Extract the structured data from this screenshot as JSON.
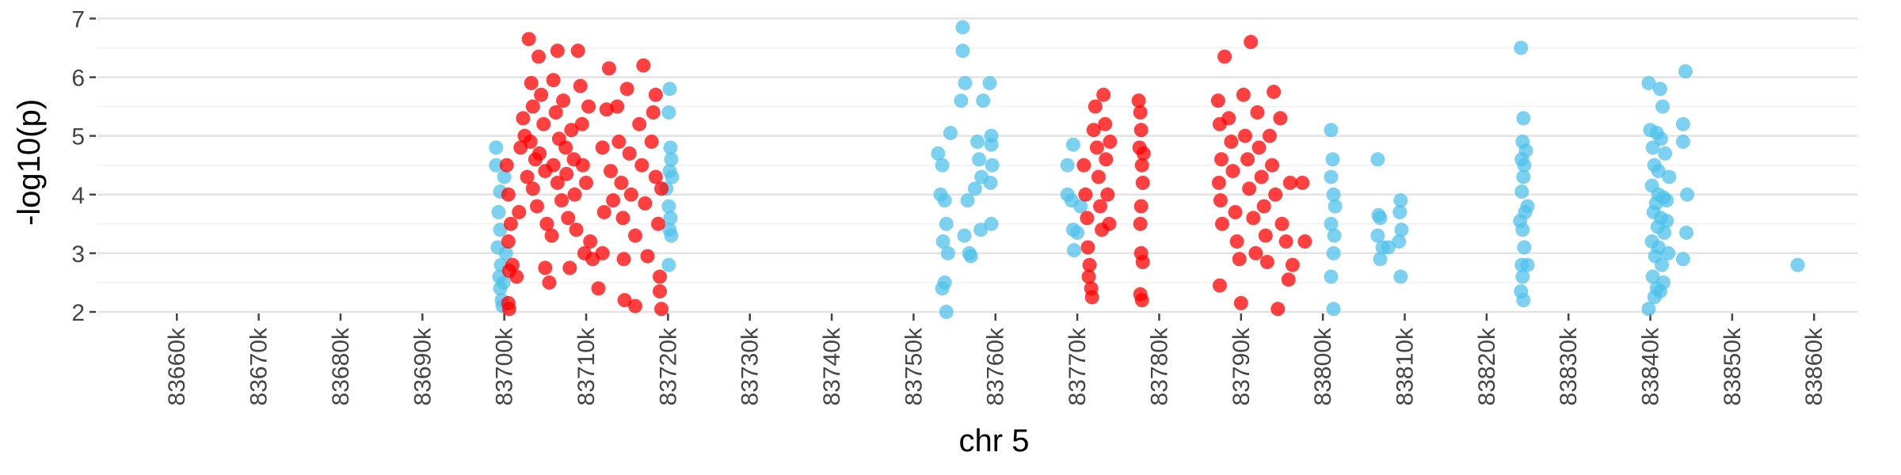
{
  "chart_data": {
    "type": "scatter",
    "x_label": "chr 5",
    "y_label": "-log10(p)",
    "xlim": [
      83650.3,
      83865.3
    ],
    "ylim": [
      2,
      7.1
    ],
    "xticks": [
      {
        "value": 83660,
        "label": "83660k"
      },
      {
        "value": 83670,
        "label": "83670k"
      },
      {
        "value": 83680,
        "label": "83680k"
      },
      {
        "value": 83690,
        "label": "83690k"
      },
      {
        "value": 83700,
        "label": "83700k"
      },
      {
        "value": 83710,
        "label": "83710k"
      },
      {
        "value": 83720,
        "label": "83720k"
      },
      {
        "value": 83730,
        "label": "83730k"
      },
      {
        "value": 83740,
        "label": "83740k"
      },
      {
        "value": 83750,
        "label": "83750k"
      },
      {
        "value": 83760,
        "label": "83760k"
      },
      {
        "value": 83770,
        "label": "83770k"
      },
      {
        "value": 83780,
        "label": "83780k"
      },
      {
        "value": 83790,
        "label": "83790k"
      },
      {
        "value": 83800,
        "label": "83800k"
      },
      {
        "value": 83810,
        "label": "83810k"
      },
      {
        "value": 83820,
        "label": "83820k"
      },
      {
        "value": 83830,
        "label": "83830k"
      },
      {
        "value": 83840,
        "label": "83840k"
      },
      {
        "value": 83850,
        "label": "83850k"
      },
      {
        "value": 83860,
        "label": "83860k"
      }
    ],
    "yticks": [
      2,
      3,
      4,
      5,
      6,
      7
    ],
    "minor_yticks": [
      2.5,
      3.5,
      4.5,
      5.5,
      6.5
    ],
    "grid": true,
    "series": [
      {
        "color": "#4fc1e9",
        "x": [
          83699,
          83699,
          83699.5,
          83699.3,
          83699.5,
          83699.2,
          83699.6,
          83699.4,
          83699.5,
          83699.7,
          83699.8,
          83700,
          83700.2,
          83699.9,
          83720.2,
          83720.1,
          83720.3,
          83720.4,
          83720.2,
          83720.5,
          83720.1,
          83720.3,
          83720.2,
          83720.4,
          83720.1,
          83719.8,
          83753,
          83753.5,
          83753.3,
          83753.8,
          83754,
          83753.6,
          83754.2,
          83753.8,
          83753.5,
          83754,
          83754.5,
          83756,
          83756,
          83756.3,
          83755.8,
          83756.6,
          83756.2,
          83756.8,
          83757,
          83757.5,
          83757.8,
          83758,
          83758.3,
          83758.2,
          83759.3,
          83759.5,
          83759.5,
          83759.6,
          83759.4,
          83759.5,
          83758.5,
          83768.8,
          83768.8,
          83769.5,
          83769.3,
          83769.5,
          83769.6,
          83770,
          83770.4,
          83801,
          83801.2,
          83801,
          83801.3,
          83801.5,
          83801,
          83801.4,
          83801.3,
          83801,
          83801.3,
          83806.7,
          83806.8,
          83807,
          83806.7,
          83807.3,
          83807,
          83809.5,
          83809.4,
          83809.6,
          83809.3,
          83809.5,
          83808,
          83824.2,
          83824.5,
          83824.4,
          83824.3,
          83824.6,
          83824.8,
          83824.5,
          83824.3,
          83825,
          83824.7,
          83824.1,
          83824.4,
          83824.6,
          83824.3,
          83825,
          83824.4,
          83824.2,
          83824.5,
          83839.8,
          83841.2,
          83841.5,
          83844.3,
          83840,
          83840.8,
          83841.3,
          83840.3,
          83841.8,
          83844,
          83844,
          83840.5,
          83841,
          83842.3,
          83840.2,
          83841,
          83841.6,
          83840.7,
          83842,
          83844.5,
          83840.4,
          83841.3,
          83842,
          83840.9,
          83841.7,
          83844.4,
          83840.2,
          83841,
          83842.2,
          83840.6,
          83844,
          83841.4,
          83840.3,
          83841.6,
          83840.8,
          83841.2,
          83840.5,
          83839.8,
          83858
        ],
        "values": [
          4.8,
          4.5,
          4.05,
          3.7,
          3.4,
          3.1,
          2.8,
          2.6,
          2.4,
          2.2,
          2.1,
          4.3,
          3.0,
          2.5,
          5.8,
          5.4,
          4.8,
          4.6,
          4.4,
          4.3,
          3.8,
          3.6,
          3.4,
          3.3,
          2.8,
          4.1,
          4.7,
          4.5,
          4.0,
          3.9,
          3.5,
          3.2,
          3.0,
          2.5,
          2.4,
          2.0,
          5.05,
          6.85,
          6.45,
          5.9,
          5.6,
          3.9,
          3.3,
          3.0,
          2.95,
          4.1,
          4.9,
          4.6,
          4.3,
          3.4,
          5.9,
          5.0,
          4.85,
          4.5,
          4.2,
          3.5,
          5.6,
          4.5,
          4.0,
          4.85,
          3.9,
          3.4,
          3.05,
          3.35,
          3.8,
          5.1,
          4.6,
          4.3,
          4.0,
          3.8,
          3.5,
          3.3,
          3.0,
          2.6,
          2.05,
          4.6,
          3.65,
          3.6,
          3.3,
          3.1,
          2.9,
          3.9,
          3.7,
          3.4,
          3.2,
          2.6,
          3.1,
          6.5,
          5.3,
          4.9,
          4.6,
          4.5,
          4.75,
          4.3,
          4.05,
          3.8,
          3.7,
          3.55,
          3.4,
          3.1,
          2.8,
          2.8,
          2.6,
          2.35,
          2.2,
          5.9,
          5.8,
          5.5,
          6.1,
          5.1,
          5.05,
          4.95,
          4.8,
          4.7,
          5.2,
          4.9,
          4.5,
          4.4,
          4.3,
          4.15,
          4.0,
          3.95,
          3.85,
          3.9,
          4.0,
          3.7,
          3.6,
          3.55,
          3.45,
          3.35,
          3.35,
          3.2,
          3.1,
          3.0,
          2.95,
          2.9,
          2.8,
          2.6,
          2.5,
          2.4,
          2.35,
          2.25,
          2.05,
          2.8
        ]
      },
      {
        "color": "#ff0000",
        "x": [
          83700.3,
          83700.5,
          83700.8,
          83700.5,
          83700.6,
          83700.5,
          83700.6,
          83701.5,
          83701,
          83701.8,
          83702,
          83702.3,
          83702.5,
          83702.8,
          83703,
          83703.3,
          83703.5,
          83703.2,
          83703.8,
          83703.5,
          83704,
          83704.2,
          83704.5,
          83704.8,
          83704.3,
          83705,
          83705.2,
          83705,
          83705.5,
          83705.8,
          83706,
          83706.3,
          83706.5,
          83706.7,
          83706,
          83706.5,
          83707,
          83707.2,
          83707.5,
          83707.6,
          83707.8,
          83708,
          83708.2,
          83708.5,
          83708.6,
          83708.8,
          83709,
          83709.3,
          83709.5,
          83709.6,
          83709.8,
          83710,
          83710.3,
          83710.5,
          83710.8,
          83711.5,
          83712,
          83712.2,
          83712,
          83712.5,
          83712.8,
          83713,
          83713.3,
          83713.8,
          83714,
          83714.3,
          83714.5,
          83714.6,
          83714.7,
          83715,
          83715.3,
          83715.5,
          83716,
          83716,
          83716.5,
          83716.8,
          83717,
          83717.2,
          83717.5,
          83718,
          83718.2,
          83718.5,
          83718.8,
          83719,
          83719,
          83719.2,
          83718.5,
          83719.2,
          83770.8,
          83771,
          83771.2,
          83771.3,
          83771.5,
          83771.4,
          83771.7,
          83771.8,
          83772,
          83772.2,
          83772.4,
          83772.6,
          83772.8,
          83773,
          83773.2,
          83773.4,
          83773.5,
          83773.7,
          83773.9,
          83774,
          83777.5,
          83777.7,
          83777.8,
          83777.6,
          83777.9,
          83778,
          83777.8,
          83777.7,
          83777.8,
          83778,
          83777.7,
          83777.9,
          83778.1,
          83787.2,
          83787.4,
          83787.6,
          83787.3,
          83787.5,
          83787.7,
          83787.4,
          83788,
          83788.5,
          83788.8,
          83789,
          83789.3,
          83789.5,
          83789.8,
          83790,
          83790.3,
          83790.5,
          83790.8,
          83791,
          83791.2,
          83791.5,
          83791.8,
          83792,
          83792.2,
          83792.5,
          83792.8,
          83793,
          83793.2,
          83793.5,
          83793.8,
          83794,
          83794.2,
          83794.5,
          83794.8,
          83795,
          83795.5,
          83795.8,
          83796,
          83796.3,
          83797.5,
          83797.8
        ],
        "values": [
          4.5,
          4.0,
          3.5,
          3.2,
          2.7,
          2.15,
          2.05,
          2.6,
          2.8,
          3.7,
          4.8,
          5.3,
          5.0,
          4.3,
          6.65,
          5.9,
          5.5,
          4.9,
          4.6,
          4.1,
          3.8,
          6.35,
          5.7,
          5.2,
          4.7,
          4.4,
          3.5,
          2.75,
          2.5,
          3.3,
          5.95,
          5.4,
          6.45,
          4.95,
          4.5,
          4.2,
          3.9,
          5.6,
          4.8,
          4.35,
          3.6,
          2.75,
          5.1,
          4.6,
          4.0,
          3.4,
          6.45,
          5.85,
          5.2,
          4.5,
          3.0,
          4.2,
          5.5,
          3.2,
          2.9,
          2.4,
          3.0,
          3.7,
          4.8,
          5.45,
          6.15,
          4.4,
          3.9,
          5.5,
          4.9,
          4.2,
          3.6,
          2.9,
          2.2,
          5.8,
          4.7,
          4.0,
          3.3,
          2.1,
          5.2,
          4.5,
          6.2,
          3.85,
          2.95,
          4.9,
          5.4,
          4.3,
          3.5,
          2.6,
          2.35,
          2.05,
          5.7,
          4.1,
          4.5,
          4.0,
          3.6,
          3.1,
          2.8,
          2.6,
          2.4,
          2.25,
          5.1,
          5.5,
          4.8,
          4.3,
          3.8,
          3.4,
          5.7,
          5.2,
          4.6,
          4.0,
          3.5,
          4.9,
          5.6,
          5.4,
          5.1,
          4.8,
          4.5,
          4.2,
          3.8,
          3.5,
          3.0,
          2.85,
          2.3,
          2.2,
          4.7,
          5.6,
          5.2,
          4.6,
          4.2,
          3.9,
          3.5,
          2.45,
          6.35,
          5.3,
          4.9,
          4.4,
          3.7,
          3.2,
          2.9,
          2.15,
          5.7,
          5.0,
          4.6,
          4.1,
          6.6,
          3.6,
          3.0,
          5.4,
          4.8,
          4.3,
          3.8,
          3.3,
          2.85,
          5.0,
          4.5,
          5.75,
          4.0,
          2.05,
          5.3,
          3.5,
          3.2,
          2.55,
          4.2,
          2.8,
          4.2,
          3.2
        ]
      }
    ]
  }
}
